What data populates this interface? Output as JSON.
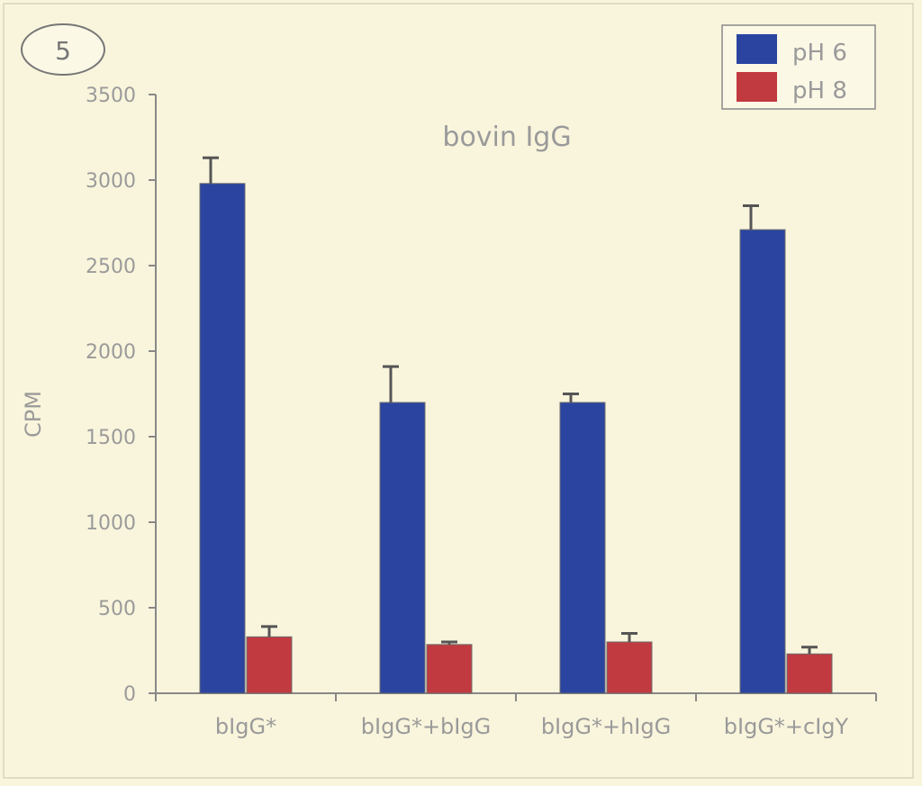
{
  "panel_label": "5",
  "chart_data": {
    "type": "bar",
    "title": "bovin IgG",
    "xlabel": "",
    "ylabel": "CPM",
    "ylim": [
      0,
      3500
    ],
    "yticks": [
      0,
      500,
      1000,
      1500,
      2000,
      2500,
      3000,
      3500
    ],
    "grid": false,
    "legend_position": "top-right",
    "categories": [
      "bIgG*",
      "bIgG*+bIgG",
      "bIgG*+hIgG",
      "bIgG*+cIgY"
    ],
    "series": [
      {
        "name": "pH 6",
        "color": "#2a44a0",
        "values": [
          2980,
          1700,
          1700,
          2710
        ],
        "errors": [
          150,
          210,
          50,
          140
        ]
      },
      {
        "name": "pH 8",
        "color": "#c03a40",
        "values": [
          330,
          285,
          300,
          230
        ],
        "errors": [
          60,
          15,
          50,
          40
        ]
      }
    ]
  }
}
